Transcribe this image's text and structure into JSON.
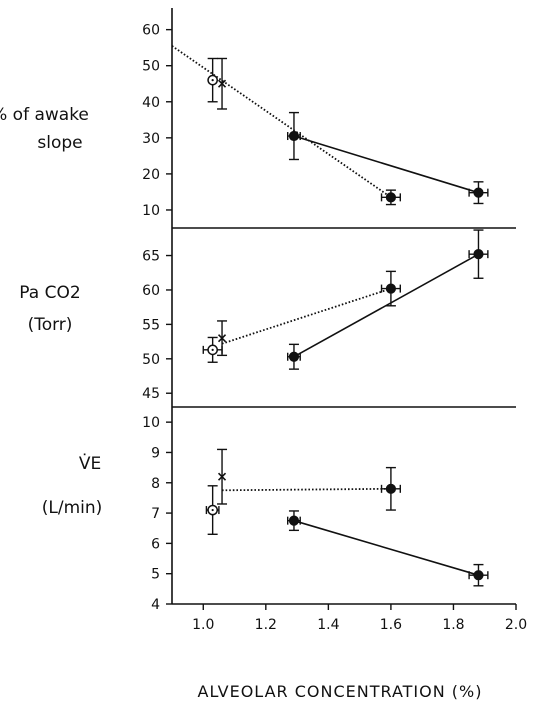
{
  "chart_data": [
    {
      "type": "scatter",
      "panel": "top",
      "ylabel_lines": [
        "% of awake",
        "slope"
      ],
      "ylim": [
        5,
        66
      ],
      "yticks": [
        10,
        20,
        30,
        40,
        50,
        60
      ],
      "points": [
        {
          "x": 1.03,
          "y": 46,
          "marker": "open",
          "yerr": 6
        },
        {
          "x": 1.06,
          "y": 45,
          "marker": "x",
          "yerr": 7
        },
        {
          "x": 1.29,
          "y": 30.5,
          "marker": "filled",
          "yerr": 6.5,
          "xerr": 0.02
        },
        {
          "x": 1.6,
          "y": 13.5,
          "marker": "filled",
          "yerr": 2,
          "xerr": 0.03
        },
        {
          "x": 1.88,
          "y": 14.8,
          "marker": "filled",
          "yerr": 3,
          "xerr": 0.03
        }
      ],
      "lines": [
        {
          "style": "dotted",
          "points": [
            [
              0.9,
              55.5
            ],
            [
              1.6,
              13.5
            ]
          ]
        },
        {
          "style": "solid",
          "points": [
            [
              1.29,
              30.5
            ],
            [
              1.88,
              14.8
            ]
          ]
        }
      ]
    },
    {
      "type": "scatter",
      "panel": "middle",
      "ylabel_lines": [
        "Pa CO2",
        "(Torr)"
      ],
      "ylim": [
        43,
        69
      ],
      "yticks": [
        45,
        50,
        55,
        60,
        65
      ],
      "points": [
        {
          "x": 1.03,
          "y": 51.3,
          "marker": "open",
          "yerr": 1.8,
          "xerr": 0.03
        },
        {
          "x": 1.06,
          "y": 53,
          "marker": "x",
          "yerr": 2.5
        },
        {
          "x": 1.29,
          "y": 50.3,
          "marker": "filled",
          "yerr": 1.8,
          "xerr": 0.02
        },
        {
          "x": 1.6,
          "y": 60.2,
          "marker": "filled",
          "yerr": 2.5,
          "xerr": 0.03
        },
        {
          "x": 1.88,
          "y": 65.2,
          "marker": "filled",
          "yerr": 3.5,
          "xerr": 0.03
        }
      ],
      "lines": [
        {
          "style": "dotted",
          "points": [
            [
              1.06,
              52.2
            ],
            [
              1.6,
              60.2
            ]
          ]
        },
        {
          "style": "solid",
          "points": [
            [
              1.29,
              50.3
            ],
            [
              1.88,
              65.2
            ]
          ]
        }
      ]
    },
    {
      "type": "scatter",
      "panel": "bottom",
      "ylabel_lines": [
        "V̇E",
        "(L/min)"
      ],
      "ylim": [
        4,
        10.5
      ],
      "yticks": [
        4,
        5,
        6,
        7,
        8,
        9,
        10
      ],
      "points": [
        {
          "x": 1.03,
          "y": 7.1,
          "marker": "open",
          "yerr": 0.8,
          "xerr": 0.02
        },
        {
          "x": 1.06,
          "y": 8.2,
          "marker": "x",
          "yerr": 0.9
        },
        {
          "x": 1.29,
          "y": 6.75,
          "marker": "filled",
          "yerr": 0.32,
          "xerr": 0.02
        },
        {
          "x": 1.6,
          "y": 7.8,
          "marker": "filled",
          "yerr": 0.7,
          "xerr": 0.03
        },
        {
          "x": 1.88,
          "y": 4.95,
          "marker": "filled",
          "yerr": 0.35,
          "xerr": 0.03
        }
      ],
      "lines": [
        {
          "style": "dotted",
          "points": [
            [
              1.06,
              7.75
            ],
            [
              1.6,
              7.8
            ]
          ]
        },
        {
          "style": "solid",
          "points": [
            [
              1.29,
              6.75
            ],
            [
              1.88,
              4.95
            ]
          ]
        }
      ]
    }
  ],
  "x_axis": {
    "label": "ALVEOLAR  CONCENTRATION (%)",
    "xlim": [
      0.9,
      2.0
    ],
    "ticks": [
      "1.0",
      "1.2",
      "1.4",
      "1.6",
      "1.8",
      "2.0"
    ]
  }
}
